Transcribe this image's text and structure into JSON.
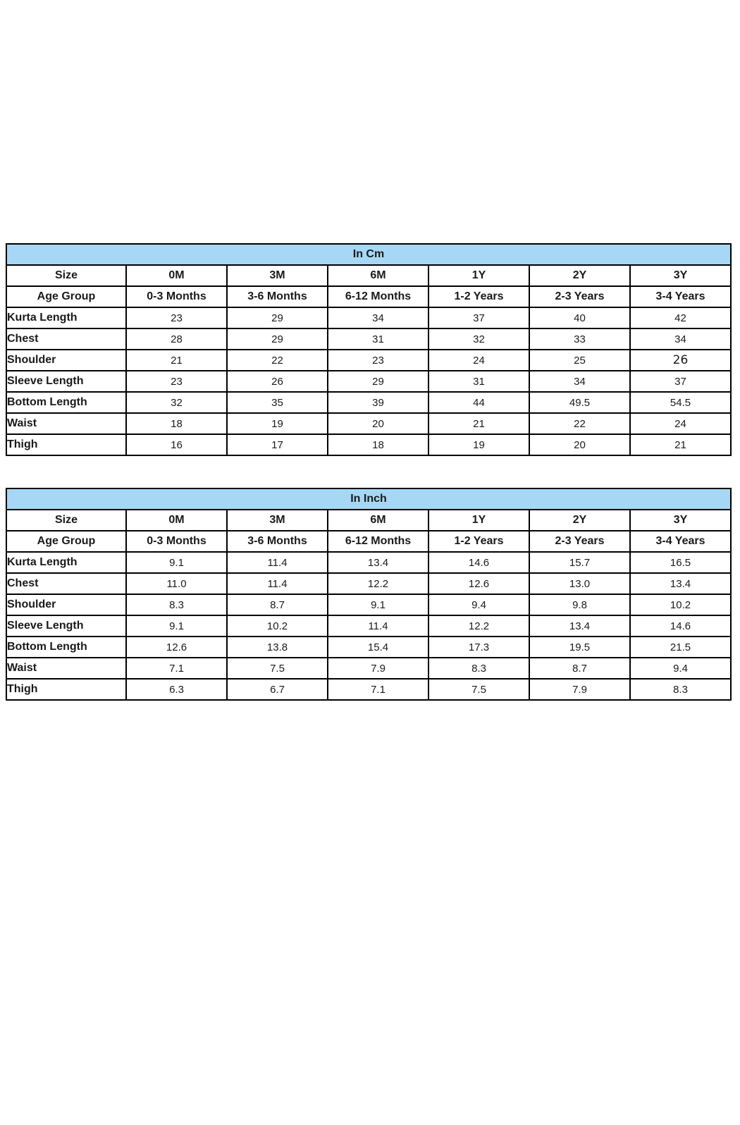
{
  "page": {
    "background_color": "#ffffff",
    "border_color": "#000000",
    "header_fill_color": "#A6D8F5",
    "text_color": "#1a1a1a"
  },
  "tables": [
    {
      "title": "In Cm",
      "header_rows": [
        {
          "label": "Size",
          "values": [
            "0M",
            "3M",
            "6M",
            "1Y",
            "2Y",
            "3Y"
          ]
        },
        {
          "label": "Age Group",
          "values": [
            "0-3 Months",
            "3-6 Months",
            "6-12 Months",
            "1-2 Years",
            "2-3 Years",
            "3-4 Years"
          ]
        }
      ],
      "rows": [
        {
          "label": "Kurta Length",
          "values": [
            "23",
            "29",
            "34",
            "37",
            "40",
            "42"
          ]
        },
        {
          "label": "Chest",
          "values": [
            "28",
            "29",
            "31",
            "32",
            "33",
            "34"
          ]
        },
        {
          "label": "Shoulder",
          "values": [
            "21",
            "22",
            "23",
            "24",
            "25",
            "26"
          ]
        },
        {
          "label": "Sleeve Length",
          "values": [
            "23",
            "26",
            "29",
            "31",
            "34",
            "37"
          ]
        },
        {
          "label": "Bottom Length",
          "values": [
            "32",
            "35",
            "39",
            "44",
            "49.5",
            "54.5"
          ]
        },
        {
          "label": "Waist",
          "values": [
            "18",
            "19",
            "20",
            "21",
            "22",
            "24"
          ]
        },
        {
          "label": "Thigh",
          "values": [
            "16",
            "17",
            "18",
            "19",
            "20",
            "21"
          ]
        }
      ]
    },
    {
      "title": "In Inch",
      "header_rows": [
        {
          "label": "Size",
          "values": [
            "0M",
            "3M",
            "6M",
            "1Y",
            "2Y",
            "3Y"
          ]
        },
        {
          "label": "Age Group",
          "values": [
            "0-3 Months",
            "3-6 Months",
            "6-12 Months",
            "1-2 Years",
            "2-3 Years",
            "3-4 Years"
          ]
        }
      ],
      "rows": [
        {
          "label": "Kurta Length",
          "values": [
            "9.1",
            "11.4",
            "13.4",
            "14.6",
            "15.7",
            "16.5"
          ]
        },
        {
          "label": "Chest",
          "values": [
            "11.0",
            "11.4",
            "12.2",
            "12.6",
            "13.0",
            "13.4"
          ]
        },
        {
          "label": "Shoulder",
          "values": [
            "8.3",
            "8.7",
            "9.1",
            "9.4",
            "9.8",
            "10.2"
          ]
        },
        {
          "label": "Sleeve Length",
          "values": [
            "9.1",
            "10.2",
            "11.4",
            "12.2",
            "13.4",
            "14.6"
          ]
        },
        {
          "label": "Bottom Length",
          "values": [
            "12.6",
            "13.8",
            "15.4",
            "17.3",
            "19.5",
            "21.5"
          ]
        },
        {
          "label": "Waist",
          "values": [
            "7.1",
            "7.5",
            "7.9",
            "8.3",
            "8.7",
            "9.4"
          ]
        },
        {
          "label": "Thigh",
          "values": [
            "6.3",
            "6.7",
            "7.1",
            "7.5",
            "7.9",
            "8.3"
          ]
        }
      ]
    }
  ]
}
